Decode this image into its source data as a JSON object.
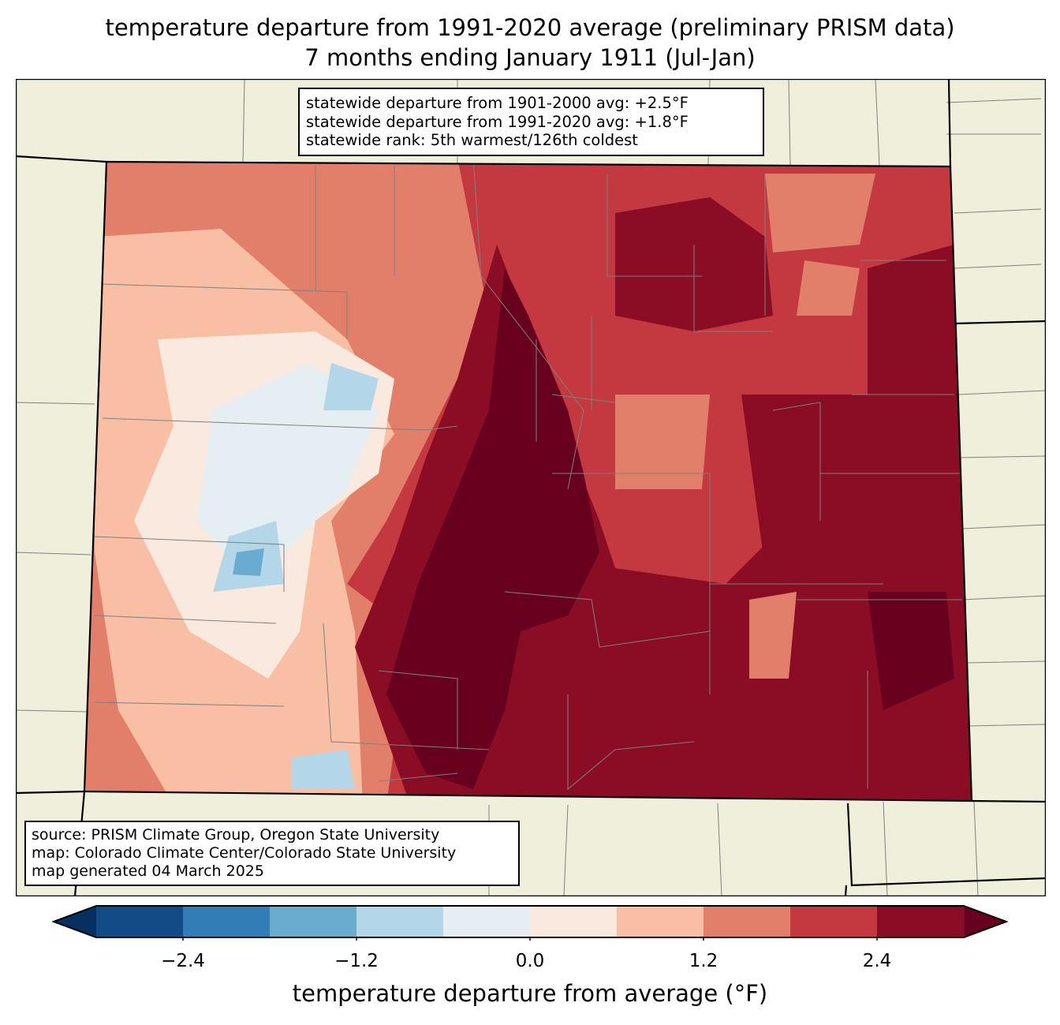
{
  "title": {
    "line1": "temperature departure from 1991-2020 average (preliminary PRISM data)",
    "line2": "7 months ending January 1911 (Jul-Jan)"
  },
  "stats_box": {
    "line1": "statewide departure from 1901-2000 avg: +2.5°F",
    "line2": "statewide departure from 1991-2020 avg: +1.8°F",
    "line3": "statewide rank: 5th warmest/126th coldest"
  },
  "source_box": {
    "line1": "source: PRISM Climate Group, Oregon State University",
    "line2": "map: Colorado Climate Center/Colorado State University",
    "line3": "map generated 04 March 2025"
  },
  "colorbar": {
    "label": "temperature departure from average (°F)",
    "levels": [
      -3.0,
      -2.4,
      -1.8,
      -1.2,
      -0.6,
      0.0,
      0.6,
      1.2,
      1.8,
      2.4,
      3.0
    ],
    "ticks": [
      "−2.4",
      "−1.2",
      "0.0",
      "1.2",
      "2.4"
    ],
    "colors": [
      "#134b87",
      "#327db6",
      "#6aacd0",
      "#b3d6e8",
      "#e5eef3",
      "#f9e9df",
      "#f8bfa4",
      "#e27f6a",
      "#c3393f",
      "#8a0c25"
    ],
    "under_color": "#053061",
    "over_color": "#67001f"
  },
  "map_colors": {
    "land": "#efefdc",
    "county_lines": "#808080",
    "state_lines": "#000000"
  }
}
